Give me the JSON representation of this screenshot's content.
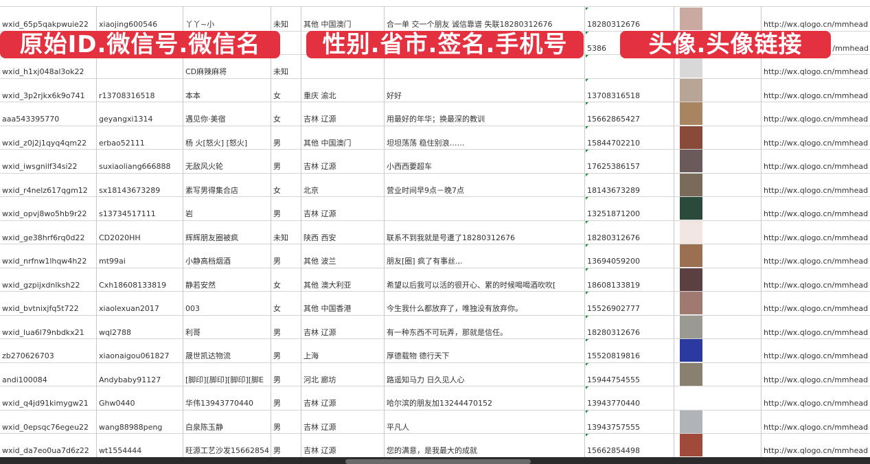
{
  "overlays": {
    "label_1": "原始ID.微信号.微信名",
    "label_2": "性别.省市.签名.手机号",
    "label_3": "头像.头像链接",
    "color": "#e3313f"
  },
  "rows": [
    {
      "id": "wxid_65p5qakpwuie22",
      "wechat": "xiaojing600546",
      "name": "丫丫~小",
      "gender": "未知",
      "region": "其他 中国澳门",
      "signature": "合一单 交一个朋友 诚信靠谱 失联18280312676",
      "phone": "18280312676",
      "avatar_color": "#c9a9a0",
      "url": "http://wx.qlogo.cn/mmhead"
    },
    {
      "id": "",
      "wechat": "",
      "name": "",
      "gender": "",
      "region": "",
      "signature": "",
      "phone": "5386",
      "avatar_color": "#5a6a9a",
      "url": "/mmhead"
    },
    {
      "id": "wxid_h1xj048al3ok22",
      "wechat": "",
      "name": "CD麻辣麻将",
      "gender": "未知",
      "region": "",
      "signature": "",
      "phone": "",
      "avatar_color": "#d8d8d8",
      "url": "http://wx.qlogo.cn/mmhead"
    },
    {
      "id": "wxid_3p2rjkx6k9o741",
      "wechat": "r13708316518",
      "name": "本本",
      "gender": "女",
      "region": "重庆 渝北",
      "signature": "好好",
      "phone": "13708316518",
      "avatar_color": "#b8a596",
      "url": "http://wx.qlogo.cn/mmhead"
    },
    {
      "id": "aaa543395770",
      "wechat": "geyangxi1314",
      "name": "遇见你·美宿",
      "gender": "女",
      "region": "吉林 辽源",
      "signature": "用最好的年华；换最深的教训",
      "phone": "15662865427",
      "avatar_color": "#a88560",
      "url": "http://wx.qlogo.cn/mmhead"
    },
    {
      "id": "wxid_z0j2j1qyq4qm22",
      "wechat": "erbao52111",
      "name": "杨 火[怒火] [怒火]",
      "gender": "男",
      "region": "其他 中国澳门",
      "signature": "坦坦荡荡 稳住别浪……",
      "phone": "15844702210",
      "avatar_color": "#8a4a3a",
      "url": "http://wx.qlogo.cn/mmhead"
    },
    {
      "id": "wxid_iwsgnilf34si22",
      "wechat": "suxiaoliang666888",
      "name": "无敌风火轮",
      "gender": "男",
      "region": "吉林 辽源",
      "signature": "小西西要超车",
      "phone": "17625386157",
      "avatar_color": "#6a5a5a",
      "url": "http://wx.qlogo.cn/mmhead"
    },
    {
      "id": "wxid_r4nelz617qgm12",
      "wechat": "sx18143673289",
      "name": "素写男得集合店",
      "gender": "女",
      "region": "北京",
      "signature": "营业时间早9点－晚7点",
      "phone": "18143673289",
      "avatar_color": "#7a6a5a",
      "url": "http://wx.qlogo.cn/mmhead"
    },
    {
      "id": "wxid_opvj8wo5hb9r22",
      "wechat": "s13734517111",
      "name": "岩",
      "gender": "男",
      "region": "吉林 辽源",
      "signature": "",
      "phone": "13251871200",
      "avatar_color": "#2a4a3a",
      "url": "http://wx.qlogo.cn/mmhead"
    },
    {
      "id": "wxid_ge38hrf6rq0d22",
      "wechat": "CD2020HH",
      "name": "辉辉朋友圈被疯",
      "gender": "未知",
      "region": "陕西 西安",
      "signature": "联系不到我就是号遭了18280312676",
      "phone": "18280312676",
      "avatar_color": "#f2e6e0",
      "url": "http://wx.qlogo.cn/mmhead"
    },
    {
      "id": "wxid_nrfnw1lhqw4h22",
      "wechat": "mt99ai",
      "name": "小静高档烟酒",
      "gender": "男",
      "region": "其他 波兰",
      "signature": "朋友[圈] 疯了有事丝.,.",
      "phone": "13694059200",
      "avatar_color": "#9a7050",
      "url": "http://wx.qlogo.cn/mmhead"
    },
    {
      "id": "wxid_gzpijxdnlksh22",
      "wechat": "Cxh18608133819",
      "name": "静若安然",
      "gender": "女",
      "region": "其他 澳大利亚",
      "signature": "希望以后我可以活的很开心、累的时候喝喝酒吹吹[",
      "phone": "18608133819",
      "avatar_color": "#5a4040",
      "url": "http://wx.qlogo.cn/mmhead"
    },
    {
      "id": "wxid_bvtnixjfq5t722",
      "wechat": "xiaolexuan2017",
      "name": "003",
      "gender": "女",
      "region": "其他 中国香港",
      "signature": "今生我什么都放弃了，唯独没有放弃你。",
      "phone": "15526902777",
      "avatar_color": "#a07a70",
      "url": "http://wx.qlogo.cn/mmhead"
    },
    {
      "id": "wxid_lua6l79nbdkx21",
      "wechat": "wql2788",
      "name": "利哥",
      "gender": "男",
      "region": "吉林 辽源",
      "signature": "有一种东西不可玩弄，那就是信任。",
      "phone": "18280312676",
      "avatar_color": "#9a9a90",
      "url": "http://wx.qlogo.cn/mmhead"
    },
    {
      "id": "zb270626703",
      "wechat": "xiaonaigou061827",
      "name": "晟世凯达物流",
      "gender": "男",
      "region": "上海",
      "signature": "厚德载物 德行天下",
      "phone": "15520819816",
      "avatar_color": "#2a3aa0",
      "url": "http://wx.qlogo.cn/mmhead"
    },
    {
      "id": "andi100084",
      "wechat": "Andybaby91127",
      "name": "[脚印][脚印][脚印][脚E",
      "gender": "男",
      "region": "河北 廊坊",
      "signature": "路遥知马力 日久见人心",
      "phone": "15944754555",
      "avatar_color": "#8a8070",
      "url": "http://wx.qlogo.cn/mmhead"
    },
    {
      "id": "wxid_q4jd91kimygw21",
      "wechat": "Ghw0440",
      "name": "华伟13943770440",
      "gender": "男",
      "region": "吉林 辽源",
      "signature": "哈尔滨的朋友加13244470152",
      "phone": "13943770440",
      "avatar_color": "#ffffff",
      "url": "http://wx.qlogo.cn/mmhead"
    },
    {
      "id": "wxid_0epsqc76egeu22",
      "wechat": "wang88988peng",
      "name": "白泉陈玉静",
      "gender": "男",
      "region": "吉林 辽源",
      "signature": "平凡人",
      "phone": "13943757555",
      "avatar_color": "#b0b4b8",
      "url": "http://wx.qlogo.cn/mmhead"
    },
    {
      "id": "wxid_da7eo0ua7d6z22",
      "wechat": "wt1554444",
      "name": "旺源工艺沙发15662854",
      "gender": "男",
      "region": "吉林 辽源",
      "signature": "您的满意，是我最大的成就",
      "phone": "15662854498",
      "avatar_color": "#a04a3a",
      "url": "http://wx.qlogo.cn/mmhead"
    }
  ]
}
